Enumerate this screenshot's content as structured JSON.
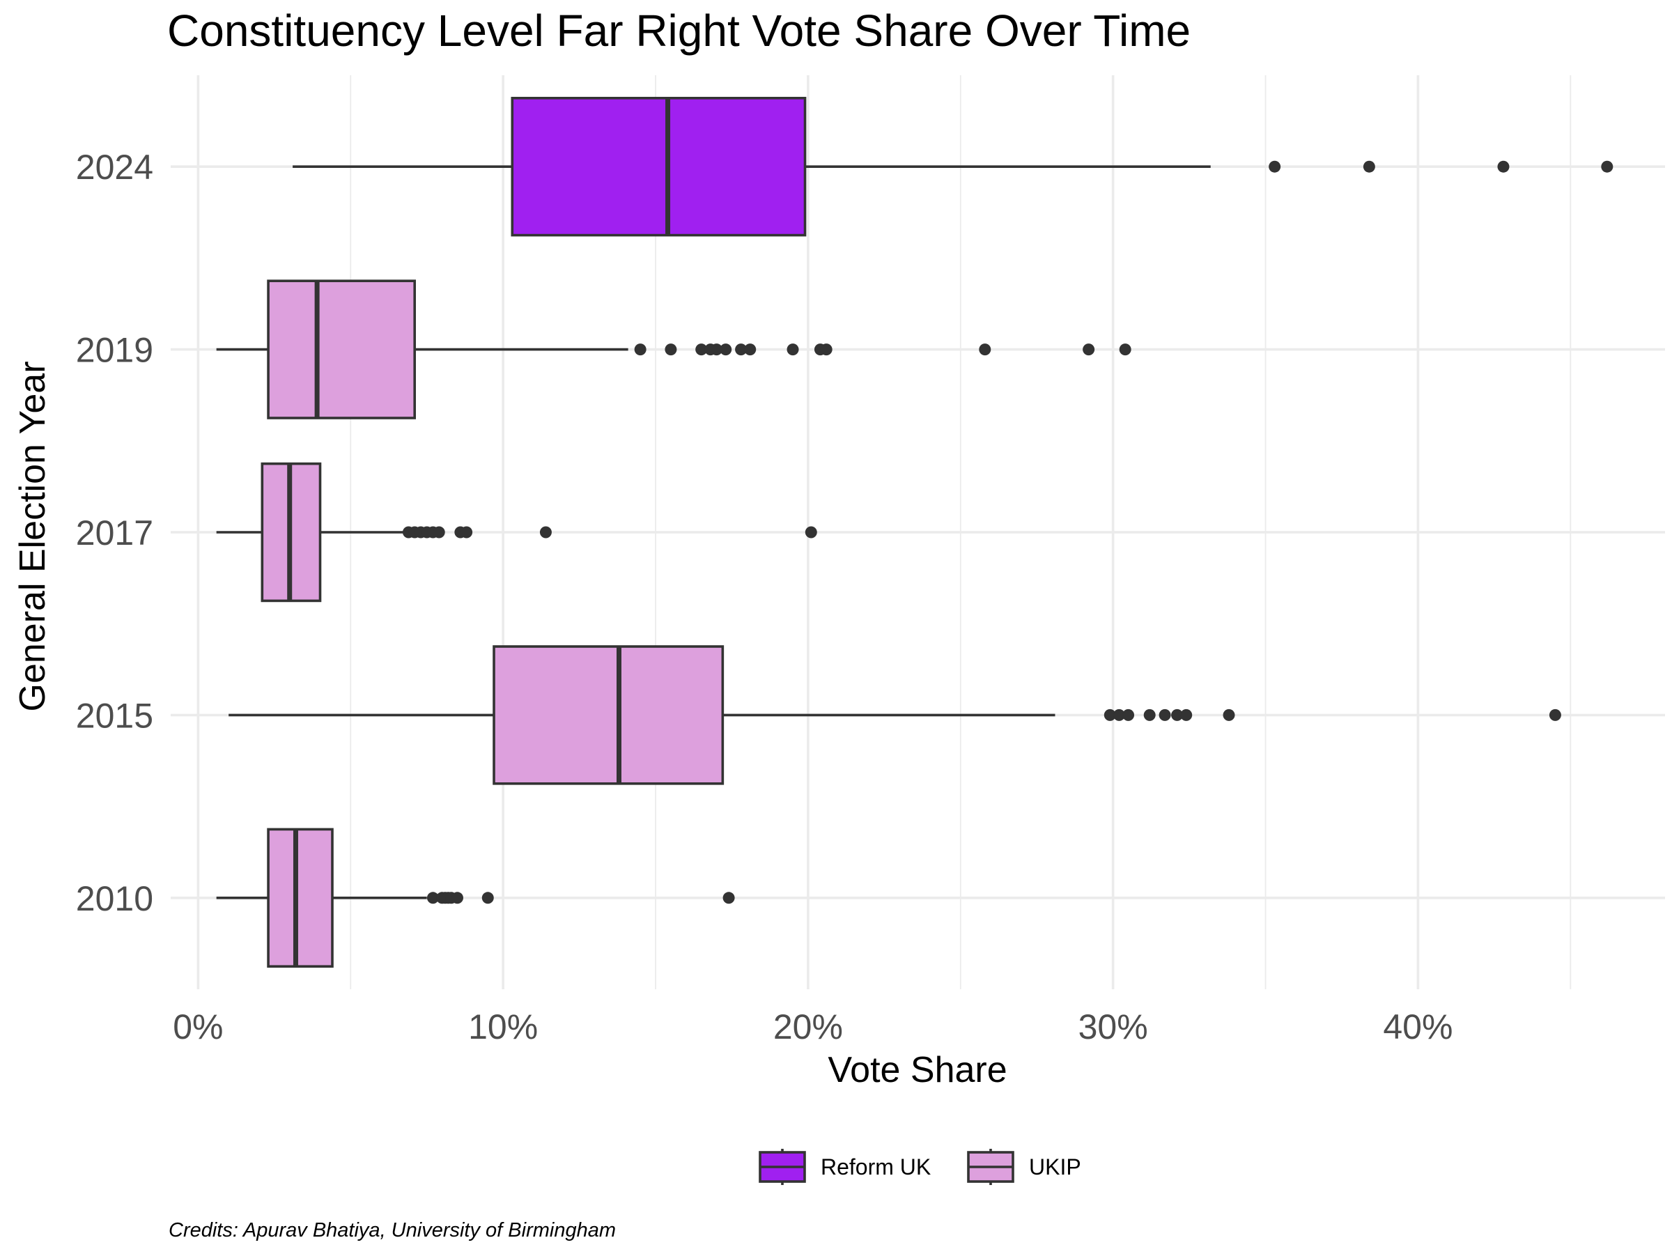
{
  "chart_data": {
    "type": "boxplot",
    "orientation": "horizontal",
    "title": "Constituency Level Far Right Vote Share Over Time",
    "xlabel": "Vote Share",
    "ylabel": "General Election Year",
    "xlim": [
      -0.9,
      48.1
    ],
    "x_ticks": [
      0,
      10,
      20,
      30,
      40
    ],
    "x_tick_labels": [
      "0%",
      "10%",
      "20%",
      "30%",
      "40%"
    ],
    "x_minor_ticks": [
      5,
      15,
      25,
      35,
      45
    ],
    "categories": [
      "2010",
      "2015",
      "2017",
      "2019",
      "2024"
    ],
    "grid": true,
    "legend_position": "bottom",
    "legend": [
      {
        "name": "Reform UK",
        "color": "#a020f0"
      },
      {
        "name": "UKIP",
        "color": "#dda0dd"
      }
    ],
    "series": [
      {
        "category": "2010",
        "party": "UKIP",
        "color": "#dda0dd",
        "whisker_low": 0.6,
        "q1": 2.3,
        "median": 3.2,
        "q3": 4.4,
        "whisker_high": 7.5,
        "outliers": [
          7.7,
          8.0,
          8.1,
          8.2,
          8.3,
          8.5,
          9.5,
          17.4
        ]
      },
      {
        "category": "2015",
        "party": "UKIP",
        "color": "#dda0dd",
        "whisker_low": 1.0,
        "q1": 9.7,
        "median": 13.8,
        "q3": 17.2,
        "whisker_high": 28.1,
        "outliers": [
          29.9,
          30.2,
          30.5,
          31.2,
          31.7,
          32.1,
          32.4,
          33.8,
          44.5
        ]
      },
      {
        "category": "2017",
        "party": "UKIP",
        "color": "#dda0dd",
        "whisker_low": 0.6,
        "q1": 2.1,
        "median": 3.0,
        "q3": 4.0,
        "whisker_high": 6.8,
        "outliers": [
          6.9,
          7.1,
          7.3,
          7.5,
          7.7,
          7.9,
          8.6,
          8.8,
          11.4,
          20.1
        ]
      },
      {
        "category": "2019",
        "party": "UKIP",
        "color": "#dda0dd",
        "whisker_low": 0.6,
        "q1": 2.3,
        "median": 3.9,
        "q3": 7.1,
        "whisker_high": 14.1,
        "outliers": [
          14.5,
          15.5,
          16.5,
          16.8,
          17.0,
          17.3,
          17.8,
          18.1,
          19.5,
          20.4,
          20.6,
          25.8,
          29.2,
          30.4
        ]
      },
      {
        "category": "2024",
        "party": "Reform UK",
        "color": "#a020f0",
        "whisker_low": 3.1,
        "q1": 10.3,
        "median": 15.4,
        "q3": 19.9,
        "whisker_high": 33.2,
        "outliers": [
          35.3,
          38.4,
          42.8,
          46.2
        ]
      }
    ]
  },
  "caption": "Credits: Apurav Bhatiya, University of Birmingham"
}
